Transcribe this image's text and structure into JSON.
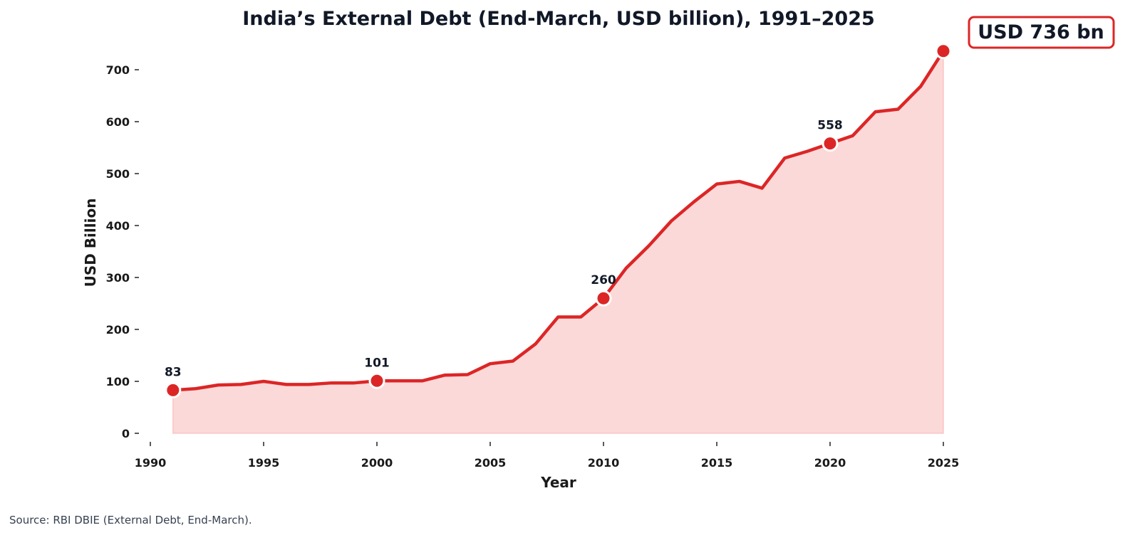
{
  "chart_data": {
    "type": "area",
    "title": "India’s External Debt (End-March, USD billion), 1991–2025",
    "xlabel": "Year",
    "ylabel": "USD Billion",
    "xlim": [
      1990,
      2025
    ],
    "ylim": [
      0,
      700
    ],
    "x_ticks": [
      "1990",
      "1995",
      "2000",
      "2005",
      "2010",
      "2015",
      "2020",
      "2025"
    ],
    "y_ticks": [
      "0",
      "100",
      "200",
      "300",
      "400",
      "500",
      "600",
      "700"
    ],
    "x": [
      1991,
      1992,
      1993,
      1994,
      1995,
      1996,
      1997,
      1998,
      1999,
      2000,
      2001,
      2002,
      2003,
      2004,
      2005,
      2006,
      2007,
      2008,
      2009,
      2010,
      2011,
      2012,
      2013,
      2014,
      2015,
      2016,
      2017,
      2018,
      2019,
      2020,
      2021,
      2022,
      2023,
      2024,
      2025
    ],
    "values": [
      83,
      86,
      93,
      94,
      100,
      94,
      94,
      97,
      97,
      101,
      101,
      101,
      112,
      113,
      134,
      139,
      172,
      224,
      224,
      260,
      318,
      361,
      409,
      446,
      480,
      485,
      472,
      530,
      543,
      558,
      573,
      619,
      624,
      668,
      736
    ],
    "highlighted": [
      {
        "x": 1991,
        "label": "83"
      },
      {
        "x": 2000,
        "label": "101"
      },
      {
        "x": 2010,
        "label": "260"
      },
      {
        "x": 2020,
        "label": "558"
      },
      {
        "x": 2025,
        "label": ""
      }
    ],
    "callout": "USD 736 bn",
    "grid": false,
    "colors": {
      "line": "#dc2626",
      "fill": "#fcd9d9"
    }
  },
  "source": "Source: RBI DBIE (External Debt, End-March)."
}
